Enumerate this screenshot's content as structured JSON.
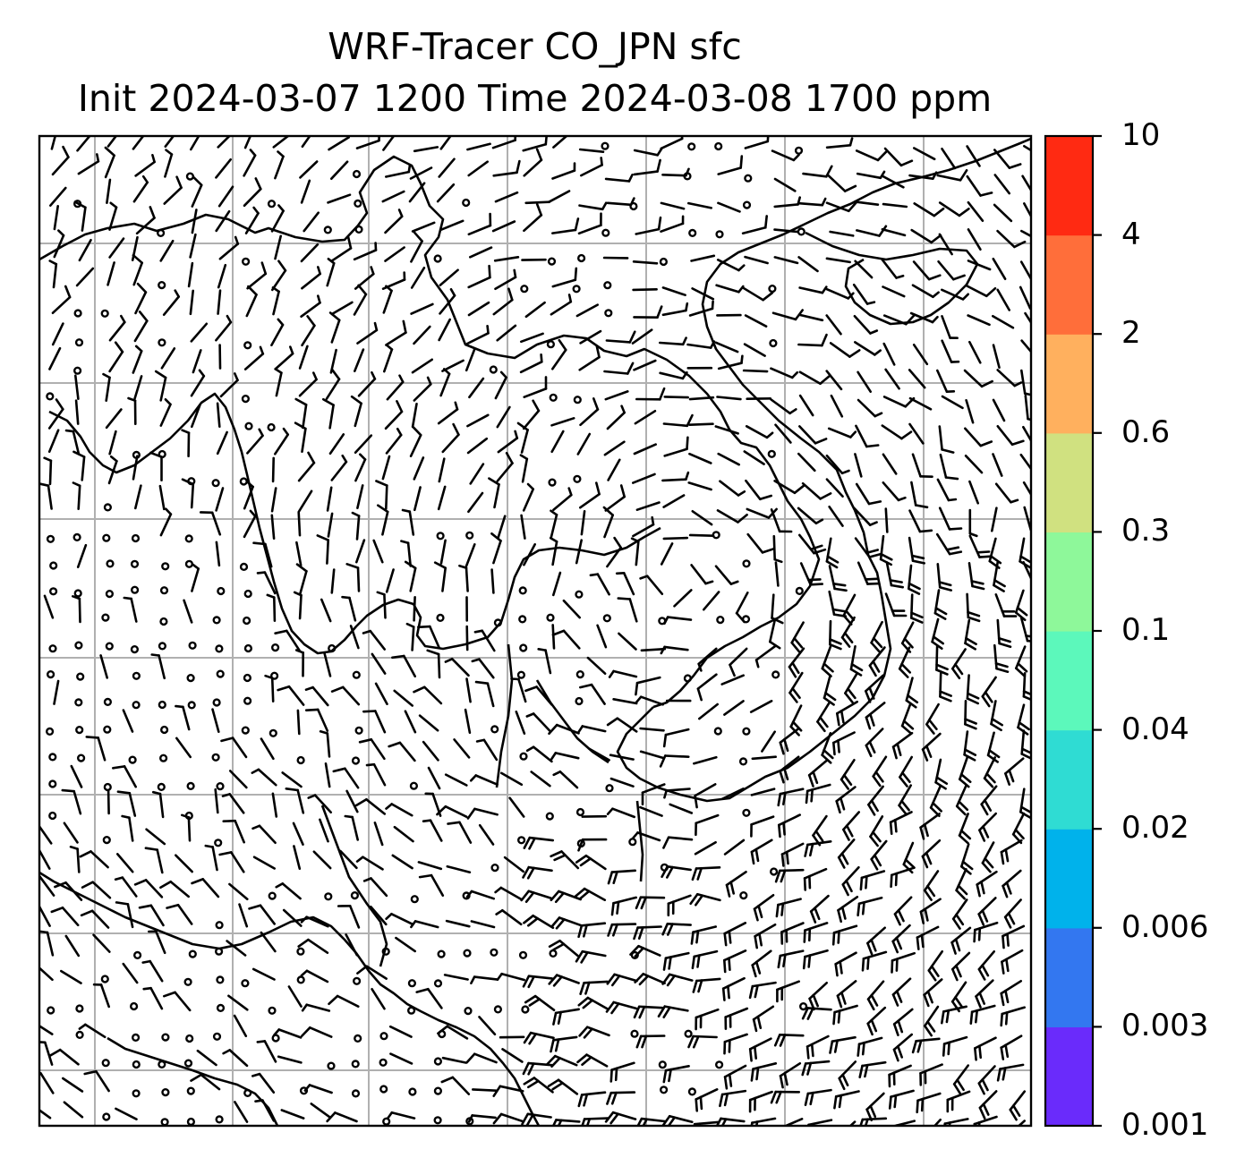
{
  "title": {
    "line1": "WRF-Tracer CO_JPN sfc",
    "line2": "Init 2024-03-07 1200 Time 2024-03-08 1700 ppm"
  },
  "colorbar": {
    "levels": [
      "0.001",
      "0.003",
      "0.006",
      "0.02",
      "0.04",
      "0.1",
      "0.3",
      "0.6",
      "2",
      "4",
      "10"
    ],
    "colors": [
      "#6a2bfb",
      "#3377f0",
      "#00b2eb",
      "#2fdcd3",
      "#5cf8bb",
      "#8ef89a",
      "#d0e180",
      "#ffb05e",
      "#ff6e3a",
      "#ff2a12"
    ]
  },
  "map": {
    "grid": true,
    "features": [
      "coastlines",
      "wind-barbs",
      "calm-circles"
    ],
    "gridline_color": "#b0b0b0"
  }
}
